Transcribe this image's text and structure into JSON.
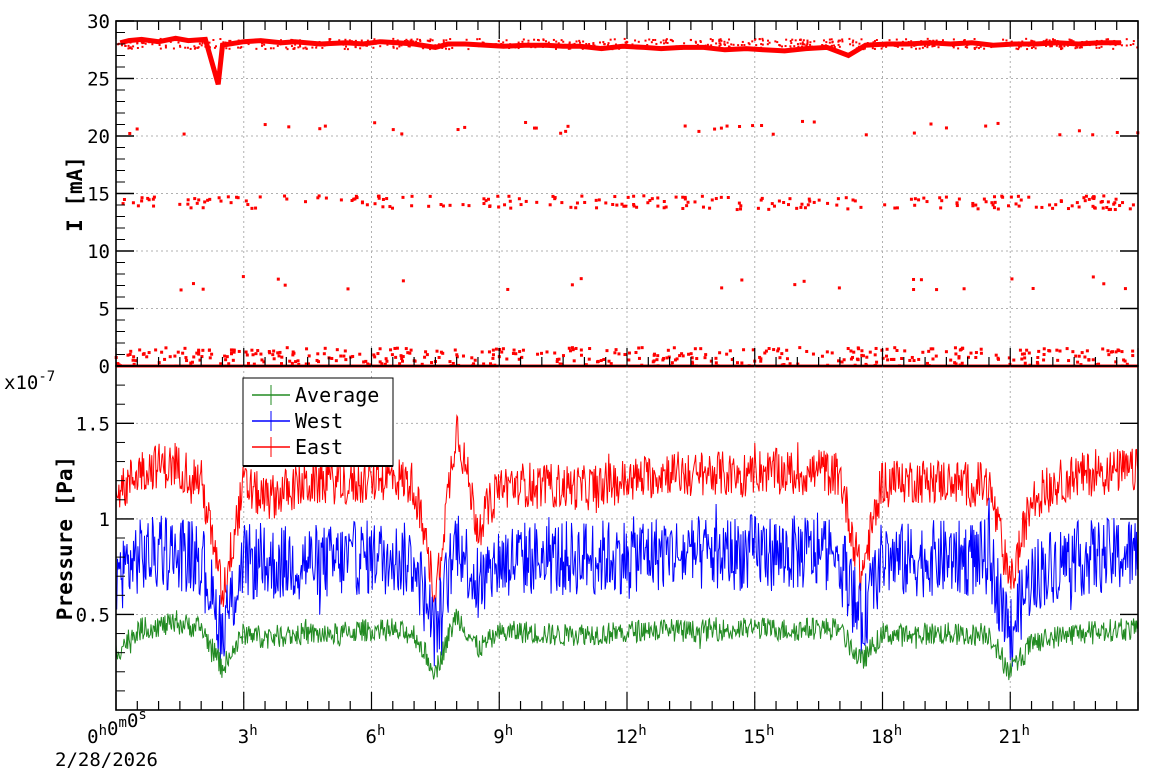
{
  "chart_data": [
    {
      "type": "scatter",
      "title": "",
      "xlabel": "",
      "ylabel": "I [mA]",
      "xlim": [
        0,
        24
      ],
      "ylim": [
        0,
        30
      ],
      "yticks": [
        0,
        5,
        10,
        15,
        20,
        25,
        30
      ],
      "ytick_labels": [
        "0",
        "5",
        "10",
        "15",
        "20",
        "25",
        "30"
      ],
      "grid": true,
      "series": [
        {
          "color": "#ff0000",
          "baseline": 28.0,
          "clusters": [
            0.8,
            7.2,
            14.2,
            20.7
          ],
          "x": [
            0.1,
            0.3,
            0.6,
            1.0,
            1.4,
            1.7,
            2.1,
            2.4,
            2.5,
            3.0,
            3.4,
            3.9,
            4.2,
            4.8,
            5.4,
            5.8,
            6.2,
            6.6,
            7.0,
            7.5,
            7.8,
            8.2,
            8.7,
            9.1,
            9.6,
            10.1,
            10.5,
            10.9,
            11.4,
            11.9,
            12.4,
            12.8,
            13.3,
            13.8,
            14.3,
            14.8,
            15.2,
            15.7,
            16.2,
            16.7,
            17.2,
            17.6,
            18.1,
            18.6,
            19.1,
            19.6,
            20.1,
            20.6,
            21.1,
            21.6,
            22.1,
            22.6,
            23.1,
            23.6
          ],
          "y": [
            28.1,
            28.3,
            28.4,
            28.2,
            28.5,
            28.3,
            28.4,
            24.5,
            27.9,
            28.2,
            28.3,
            28.1,
            28.2,
            28.0,
            28.1,
            28.0,
            28.2,
            28.1,
            28.0,
            27.7,
            28.0,
            28.0,
            27.9,
            27.8,
            27.9,
            27.9,
            27.8,
            27.8,
            27.6,
            27.8,
            27.7,
            27.6,
            27.7,
            27.7,
            27.5,
            27.6,
            27.5,
            27.4,
            27.6,
            27.7,
            27.0,
            27.9,
            28.0,
            28.0,
            28.1,
            28.0,
            28.1,
            27.9,
            28.0,
            28.0,
            28.1,
            28.0,
            28.1,
            28.1
          ]
        }
      ]
    },
    {
      "type": "line",
      "title": "",
      "xlabel": "",
      "ylabel": "Pressure [Pa]",
      "y_multiplier": "x10",
      "y_exponent": "-7",
      "xlim": [
        0,
        24
      ],
      "ylim": [
        0.0,
        1.8
      ],
      "yticks": [
        0.5,
        1.0,
        1.5
      ],
      "ytick_labels": [
        "0.5",
        "1",
        "1.5"
      ],
      "grid": true,
      "legend": "top-left",
      "x_start_date": "2/28/2026",
      "xtick_labels": [
        {
          "value": 0,
          "base": "0",
          "sup": "h",
          "parts": [
            [
              "0",
              "h"
            ],
            [
              "0",
              "m"
            ],
            [
              "0",
              "s"
            ]
          ]
        },
        {
          "value": 3,
          "base": "3",
          "sup": "h"
        },
        {
          "value": 6,
          "base": "6",
          "sup": "h"
        },
        {
          "value": 9,
          "base": "9",
          "sup": "h"
        },
        {
          "value": 12,
          "base": "12",
          "sup": "h"
        },
        {
          "value": 15,
          "base": "15",
          "sup": "h"
        },
        {
          "value": 18,
          "base": "18",
          "sup": "h"
        },
        {
          "value": 21,
          "base": "21",
          "sup": "h"
        }
      ],
      "series": [
        {
          "name": "Average",
          "color": "#228b22",
          "x": [
            0,
            0.5,
            1,
            1.5,
            2,
            2.5,
            3,
            3.5,
            4,
            4.5,
            5,
            5.5,
            6,
            6.5,
            7,
            7.5,
            8,
            8.5,
            9,
            9.5,
            10,
            10.5,
            11,
            11.5,
            12,
            12.5,
            13,
            13.5,
            14,
            14.5,
            15,
            15.5,
            16,
            16.5,
            17,
            17.5,
            18,
            18.5,
            19,
            19.5,
            20,
            20.5,
            21,
            21.5,
            22,
            22.5,
            23,
            23.5,
            24
          ],
          "y": [
            0.3,
            0.42,
            0.44,
            0.45,
            0.43,
            0.22,
            0.4,
            0.38,
            0.39,
            0.4,
            0.39,
            0.41,
            0.42,
            0.41,
            0.4,
            0.2,
            0.5,
            0.32,
            0.4,
            0.41,
            0.4,
            0.39,
            0.4,
            0.4,
            0.41,
            0.42,
            0.42,
            0.41,
            0.42,
            0.42,
            0.43,
            0.42,
            0.42,
            0.43,
            0.42,
            0.25,
            0.4,
            0.39,
            0.4,
            0.4,
            0.39,
            0.4,
            0.2,
            0.35,
            0.38,
            0.4,
            0.41,
            0.42,
            0.42
          ],
          "band": 0.06
        },
        {
          "name": "West",
          "color": "#0000ff",
          "x": [
            0,
            0.5,
            1,
            1.5,
            2,
            2.5,
            3,
            3.5,
            4,
            4.5,
            5,
            5.5,
            6,
            6.5,
            7,
            7.5,
            8,
            8.5,
            9,
            9.5,
            10,
            10.5,
            11,
            11.5,
            12,
            12.5,
            13,
            13.5,
            14,
            14.5,
            15,
            15.5,
            16,
            16.5,
            17,
            17.5,
            18,
            18.5,
            19,
            19.5,
            20,
            20.5,
            21,
            21.5,
            22,
            22.5,
            23,
            23.5,
            24
          ],
          "y": [
            0.7,
            0.8,
            0.82,
            0.82,
            0.8,
            0.4,
            0.78,
            0.76,
            0.77,
            0.78,
            0.77,
            0.79,
            0.8,
            0.79,
            0.78,
            0.4,
            0.9,
            0.65,
            0.78,
            0.79,
            0.8,
            0.79,
            0.8,
            0.8,
            0.81,
            0.82,
            0.82,
            0.81,
            0.82,
            0.82,
            0.83,
            0.82,
            0.82,
            0.83,
            0.82,
            0.45,
            0.8,
            0.78,
            0.79,
            0.8,
            0.79,
            0.8,
            0.4,
            0.7,
            0.76,
            0.79,
            0.8,
            0.81,
            0.82
          ],
          "band": 0.2
        },
        {
          "name": "East",
          "color": "#ff0000",
          "x": [
            0,
            0.5,
            1,
            1.5,
            2,
            2.5,
            3,
            3.5,
            4,
            4.5,
            5,
            5.5,
            6,
            6.5,
            7,
            7.5,
            8,
            8.5,
            9,
            9.5,
            10,
            10.5,
            11,
            11.5,
            12,
            12.5,
            13,
            13.5,
            14,
            14.5,
            15,
            15.5,
            16,
            16.5,
            17,
            17.5,
            18,
            18.5,
            19,
            19.5,
            20,
            20.5,
            21,
            21.5,
            22,
            22.5,
            23,
            23.5,
            24
          ],
          "y": [
            1.1,
            1.25,
            1.28,
            1.27,
            1.2,
            0.6,
            1.18,
            1.1,
            1.15,
            1.18,
            1.2,
            1.18,
            1.2,
            1.22,
            1.18,
            0.6,
            1.5,
            0.95,
            1.17,
            1.18,
            1.18,
            1.17,
            1.16,
            1.18,
            1.2,
            1.22,
            1.25,
            1.22,
            1.25,
            1.22,
            1.25,
            1.25,
            1.23,
            1.25,
            1.23,
            0.7,
            1.2,
            1.2,
            1.2,
            1.2,
            1.18,
            1.18,
            0.65,
            1.1,
            1.18,
            1.22,
            1.24,
            1.25,
            1.25
          ],
          "band": 0.12
        }
      ]
    }
  ]
}
